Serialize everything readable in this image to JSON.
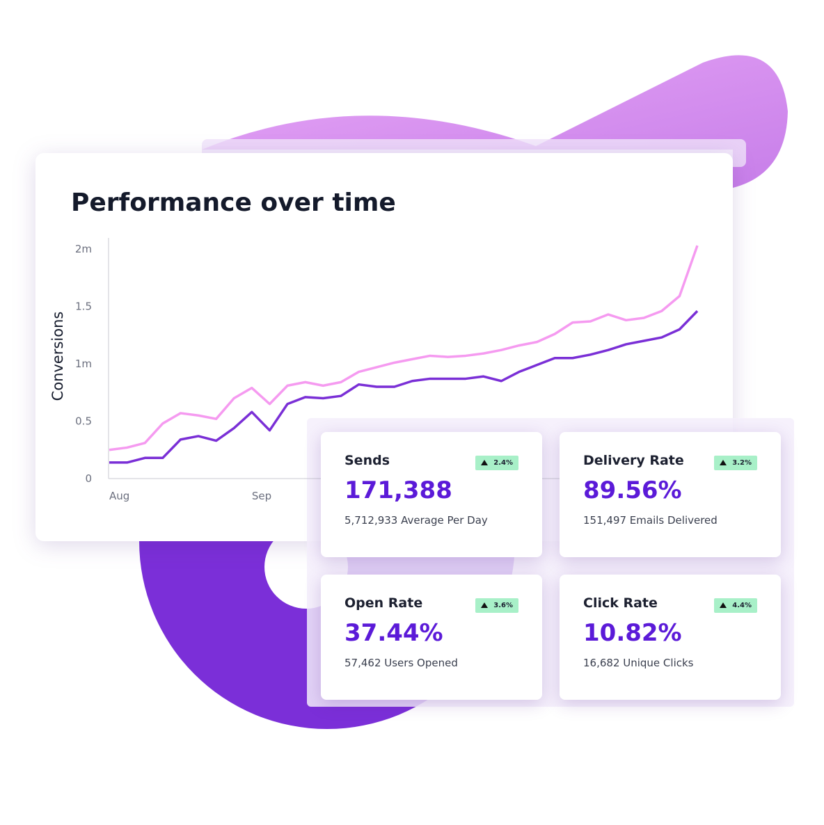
{
  "chart_data": {
    "type": "line",
    "title": "Performance over time",
    "y_label": "Conversions",
    "categories": [
      "Aug",
      null,
      null,
      null,
      null,
      null,
      null,
      null,
      "Sep",
      null,
      null,
      null,
      null,
      null,
      null,
      null,
      null,
      null,
      null,
      null,
      null,
      null,
      null,
      null,
      null,
      null,
      null,
      null,
      null,
      null,
      null,
      null,
      null,
      null
    ],
    "series": [
      {
        "color": "#f59af0",
        "values": [
          0.25,
          0.27,
          0.31,
          0.48,
          0.57,
          0.55,
          0.52,
          0.7,
          0.79,
          0.65,
          0.81,
          0.84,
          0.81,
          0.84,
          0.93,
          0.97,
          1.01,
          1.04,
          1.07,
          1.06,
          1.07,
          1.09,
          1.12,
          1.16,
          1.19,
          1.26,
          1.36,
          1.37,
          1.43,
          1.38,
          1.4,
          1.46,
          1.59,
          2.03
        ]
      },
      {
        "color": "#7a2fd6",
        "values": [
          0.14,
          0.14,
          0.18,
          0.18,
          0.34,
          0.37,
          0.33,
          0.44,
          0.58,
          0.42,
          0.65,
          0.71,
          0.7,
          0.72,
          0.82,
          0.8,
          0.8,
          0.85,
          0.87,
          0.87,
          0.87,
          0.89,
          0.85,
          0.93,
          0.99,
          1.05,
          1.05,
          1.08,
          1.12,
          1.17,
          1.2,
          1.23,
          1.3,
          1.46
        ]
      }
    ],
    "ylim": [
      0,
      2.1
    ],
    "yticks": [
      0,
      0.5,
      {
        "value": 1,
        "label": "1m"
      },
      1.5,
      {
        "value": 2,
        "label": "2m"
      }
    ]
  },
  "cards": [
    {
      "title": "Sends",
      "badge": "2.4%",
      "value": "171,388",
      "subtitle": "5,712,933 Average Per Day"
    },
    {
      "title": "Delivery Rate",
      "badge": "3.2%",
      "value": "89.56%",
      "subtitle": "151,497 Emails Delivered"
    },
    {
      "title": "Open Rate",
      "badge": "3.6%",
      "value": "37.44%",
      "subtitle": "57,462 Users Opened"
    },
    {
      "title": "Click Rate",
      "badge": "4.4%",
      "value": "10.82%",
      "subtitle": "16,682 Unique Clicks"
    }
  ]
}
